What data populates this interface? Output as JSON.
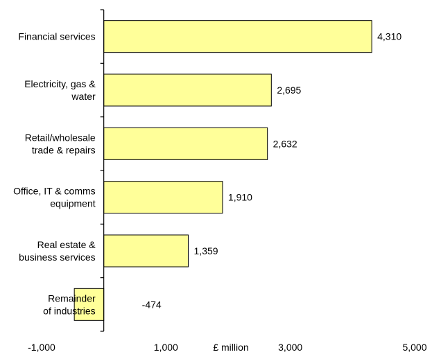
{
  "chart_data": {
    "type": "bar",
    "orientation": "horizontal",
    "categories": [
      [
        "Financial services"
      ],
      [
        "Electricity, gas &",
        "water"
      ],
      [
        "Retail/wholesale",
        "trade & repairs"
      ],
      [
        "Office, IT & comms",
        "equipment"
      ],
      [
        "Real estate &",
        "business services"
      ],
      [
        "Remainder",
        "of industries"
      ]
    ],
    "values": [
      4310,
      2695,
      2632,
      1910,
      1359,
      -474
    ],
    "value_labels": [
      "4,310",
      "2,695",
      "2,632",
      "1,910",
      "1,359",
      "-474"
    ],
    "xlim": [
      -1000,
      5000
    ],
    "x_ticks": [
      -1000,
      0,
      1000,
      2000,
      3000,
      4000,
      5000
    ],
    "x_tick_labels": [
      {
        "value": -1000,
        "label": "-1,000"
      },
      {
        "value": 1000,
        "label": "1,000"
      },
      {
        "value": 3000,
        "label": "3,000"
      },
      {
        "value": 5000,
        "label": "5,000"
      }
    ],
    "xlabel": "£ million",
    "bar_color": "#ffff99",
    "grid": false
  }
}
